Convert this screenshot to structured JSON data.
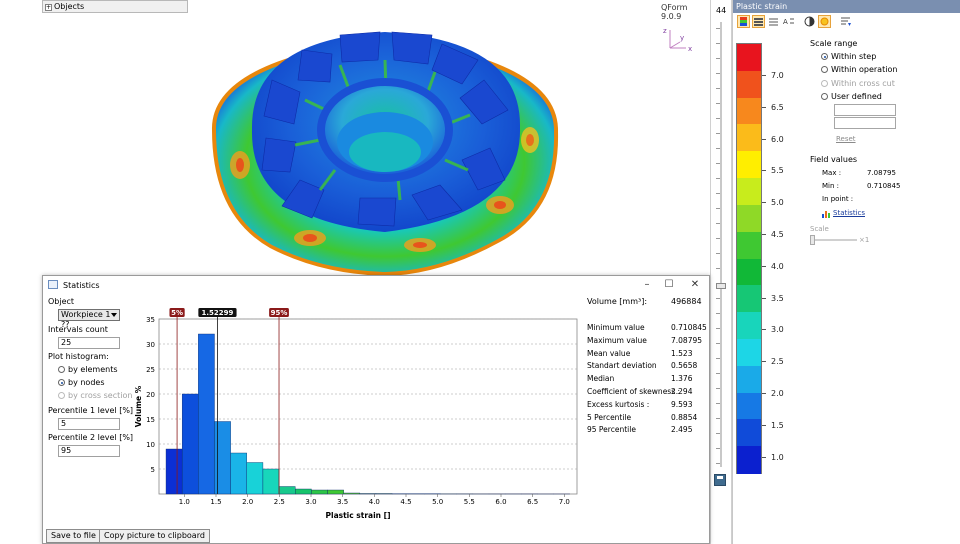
{
  "viewport": {
    "objects_label": "Objects",
    "objects_expand": "+",
    "version": "QForm 9.0.9",
    "axis_z": "z",
    "axis_y": "y",
    "axis_x": "x"
  },
  "slider": {
    "step_number": "44"
  },
  "right_panel": {
    "title": "Plastic strain",
    "toolbar": [
      "scale-colors-icon",
      "scale-bands-icon",
      "scale-lines-icon",
      "scale-text-icon",
      "contrast-icon",
      "sun-icon",
      "options-icon"
    ],
    "scale_labels": [
      "7.0",
      "6.5",
      "6.0",
      "5.5",
      "5.0",
      "4.5",
      "4.0",
      "3.5",
      "3.0",
      "2.5",
      "2.0",
      "1.5",
      "1.0"
    ],
    "scale_colors": [
      "#e8141e",
      "#f0521c",
      "#f7881d",
      "#fbbb1a",
      "#ffee00",
      "#c8ec1c",
      "#8fd927",
      "#3fc832",
      "#11b837",
      "#16c775",
      "#18d5bb",
      "#1dd6e6",
      "#1aaae8",
      "#1679e5",
      "#104bd9",
      "#0b20cf"
    ],
    "scale_range_title": "Scale range",
    "range_options": [
      {
        "label": "Within step",
        "selected": true,
        "disabled": false
      },
      {
        "label": "Within operation",
        "selected": false,
        "disabled": false
      },
      {
        "label": "Within cross cut",
        "selected": false,
        "disabled": true
      },
      {
        "label": "User defined",
        "selected": false,
        "disabled": false
      }
    ],
    "ud_min": "",
    "ud_max": "",
    "reset_label": "Reset",
    "field_values_title": "Field values",
    "max_label": "Max :",
    "max_value": "7.08795",
    "min_label": "Min :",
    "min_value": "0.710845",
    "in_point_label": "In point :",
    "statistics_link": "Statistics",
    "scale_label": "Scale",
    "scale_multiplier": "×1"
  },
  "stat_dialog": {
    "title": "Statistics",
    "object_label": "Object",
    "object_value": "Workpiece 1 ??",
    "intervals_label": "Intervals count",
    "intervals_value": "25",
    "plot_hist_label": "Plot histogram:",
    "hist_options": [
      {
        "label": "by elements",
        "selected": false,
        "disabled": false
      },
      {
        "label": "by nodes",
        "selected": true,
        "disabled": false
      },
      {
        "label": "by cross section",
        "selected": false,
        "disabled": true
      }
    ],
    "p1_label": "Percentile 1 level [%]",
    "p1_value": "5",
    "p2_label": "Percentile 2 level [%]",
    "p2_value": "95",
    "save_btn": "Save to file",
    "copy_btn": "Copy picture to clipboard",
    "volume_label": "Volume [mm³]:",
    "volume_value": "496884",
    "stats": [
      {
        "label": "Minimum value",
        "value": "0.710845"
      },
      {
        "label": "Maximum value",
        "value": "7.08795"
      },
      {
        "label": "Mean value",
        "value": "1.523"
      },
      {
        "label": "Standart deviation",
        "value": "0.5658"
      },
      {
        "label": "Median",
        "value": "1.376"
      },
      {
        "label": "Coefficient of skewness :",
        "value": "2.294"
      },
      {
        "label": "Excess kurtosis :",
        "value": "9.593"
      },
      {
        "label": "5 Percentile",
        "value": "0.8854"
      },
      {
        "label": "95 Percentile",
        "value": "2.495"
      }
    ]
  },
  "chart_data": {
    "type": "bar",
    "xlabel": "Plastic strain []",
    "ylabel": "Volume %",
    "xlim": [
      0.6,
      7.2
    ],
    "ylim": [
      0,
      35
    ],
    "xticks": [
      1.0,
      1.5,
      2.0,
      2.5,
      3.0,
      3.5,
      4.0,
      4.5,
      5.0,
      5.5,
      6.0,
      6.5,
      7.0
    ],
    "yticks": [
      5,
      10,
      15,
      20,
      25,
      30,
      35
    ],
    "bin_width": 0.255,
    "bins_start": [
      0.711,
      0.966,
      1.221,
      1.476,
      1.731,
      1.986,
      2.241,
      2.496,
      2.751,
      3.006,
      3.261,
      3.516,
      3.771,
      4.026,
      4.281,
      4.536,
      4.791,
      5.046,
      5.301,
      5.556,
      5.811,
      6.066,
      6.321,
      6.576,
      6.831
    ],
    "values": [
      9,
      20,
      32,
      14.5,
      8.2,
      6.3,
      5,
      1.5,
      1.0,
      0.8,
      0.8,
      0.2,
      0.1,
      0.1,
      0.05,
      0.05,
      0.05,
      0.03,
      0.03,
      0.02,
      0.02,
      0.02,
      0.02,
      0.01,
      0.01
    ],
    "bar_colors": [
      "#0b2fd4",
      "#0d4fdc",
      "#1668e4",
      "#1a8de6",
      "#1ab4e8",
      "#18d2d8",
      "#18d6bb",
      "#18c98c",
      "#16c36a",
      "#2dc546",
      "#3fc832",
      "#5fd02c",
      "#8fd927",
      "#a8e224",
      "#c8ec1c",
      "#e0ee14",
      "#ffee00",
      "#fcd516",
      "#fbbb1a",
      "#f7a01c",
      "#f7881d",
      "#f06e1c",
      "#f0521c",
      "#ec341d",
      "#e8141e"
    ],
    "markers": [
      {
        "label": "5%",
        "x": 0.8854,
        "color": "#8b1a1a"
      },
      {
        "label": "1.52299",
        "x": 1.523,
        "color": "#111111"
      },
      {
        "label": "95%",
        "x": 2.495,
        "color": "#8b1a1a"
      }
    ],
    "grid": "horizontal dashed"
  }
}
